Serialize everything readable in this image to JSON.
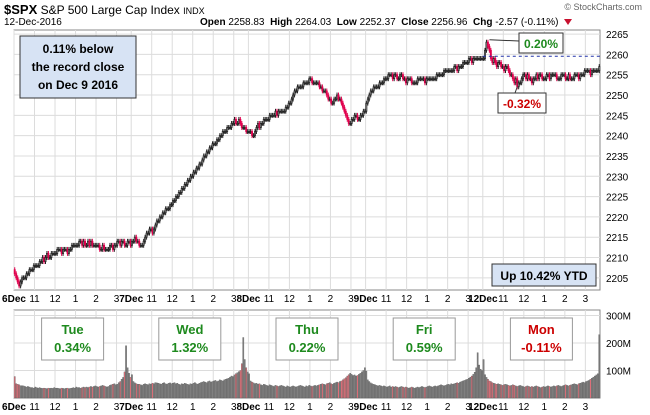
{
  "header": {
    "ticker": "$SPX",
    "name": "S&P 500 Large Cap Index",
    "exchange": "INDX",
    "date": "12-Dec-2016",
    "open_label": "Open",
    "open": "2258.83",
    "high_label": "High",
    "high": "2264.03",
    "low_label": "Low",
    "low": "2252.37",
    "close_label": "Close",
    "close": "2256.96",
    "chg_label": "Chg",
    "chg": "-2.57 (-0.11%)",
    "source": "© StockCharts.com"
  },
  "annotations": {
    "record": "0.11% below\nthe record close\non Dec 9 2016",
    "ytd": "Up 10.42% YTD",
    "up_box": "0.20%",
    "down_box": "-0.32%"
  },
  "colors": {
    "up": "#222222",
    "down": "#e0004d",
    "up_volume": "#808080",
    "down_volume": "#e0707a",
    "gain_text": "#1e8a1e",
    "loss_text": "#cc0000",
    "grid": "#dcdcdc",
    "box_fill": "#d7e3f4"
  },
  "chart_data": {
    "type": "candlestick",
    "price_axis": {
      "ylim": [
        2202,
        2266
      ],
      "ticks": [
        2205,
        2210,
        2215,
        2220,
        2225,
        2230,
        2235,
        2240,
        2245,
        2250,
        2255,
        2260,
        2265
      ]
    },
    "volume_axis": {
      "ylim": [
        0,
        320
      ],
      "ticks": [
        100,
        200,
        300
      ],
      "tick_labels": [
        "100M",
        "200M",
        "300M"
      ]
    },
    "reference_line": 2259.53,
    "x_labels": [
      "6Dec",
      "11",
      "12",
      "1",
      "2",
      "3",
      "7Dec",
      "11",
      "12",
      "1",
      "2",
      "3",
      "8Dec",
      "11",
      "12",
      "1",
      "2",
      "3",
      "9Dec",
      "11",
      "12",
      "1",
      "2",
      "3",
      "12Dec",
      "11",
      "12",
      "1",
      "2",
      "3"
    ],
    "days": [
      {
        "name": "Tue",
        "pct": "0.34%",
        "sign": "up",
        "close": [
          2206,
          2205,
          2204,
          2203,
          2204,
          2205,
          2205,
          2205,
          2206,
          2206,
          2207,
          2207,
          2207,
          2208,
          2208,
          2208,
          2208,
          2209,
          2209,
          2210,
          2209,
          2210,
          2211,
          2210,
          2210,
          2211,
          2211,
          2211,
          2211,
          2212,
          2212,
          2212,
          2211,
          2212,
          2212,
          2212,
          2211,
          2212,
          2212,
          2213,
          2213,
          2213,
          2213,
          2213,
          2214,
          2214,
          2213,
          2214,
          2213,
          2213,
          2214,
          2213,
          2214,
          2213,
          2213,
          2213,
          2213,
          2213,
          2212,
          2212,
          2213,
          2212,
          2212,
          2212,
          2212,
          2213,
          2213,
          2212,
          2213,
          2213,
          2214,
          2214,
          2213,
          2214,
          2214,
          2213,
          2213,
          2214,
          2214,
          2213
        ],
        "volume": [
          78,
          52,
          50,
          48,
          45,
          45,
          44,
          42,
          40,
          42,
          40,
          38,
          38,
          36,
          40,
          38,
          36,
          38,
          36,
          35,
          36,
          35,
          34,
          36,
          35,
          36,
          35,
          38,
          36,
          36,
          35,
          34,
          36,
          35,
          34,
          35,
          36,
          34,
          35,
          36,
          38,
          36,
          40,
          38,
          38,
          36,
          38,
          40,
          38,
          40,
          38,
          40,
          42,
          40,
          42,
          44,
          42,
          40,
          42,
          44,
          46,
          44,
          42,
          40,
          42,
          46,
          48,
          50,
          52,
          48,
          50,
          56,
          60,
          68,
          75,
          95,
          190,
          110,
          90,
          75
        ]
      },
      {
        "name": "Wed",
        "pct": "1.32%",
        "sign": "up",
        "close": [
          2214,
          2214,
          2215,
          2214,
          2214,
          2213,
          2213,
          2213,
          2214,
          2215,
          2216,
          2216,
          2217,
          2217,
          2216,
          2217,
          2218,
          2219,
          2219,
          2220,
          2220,
          2221,
          2221,
          2222,
          2222,
          2222,
          2223,
          2223,
          2224,
          2224,
          2225,
          2225,
          2226,
          2226,
          2227,
          2227,
          2228,
          2228,
          2229,
          2229,
          2230,
          2230,
          2231,
          2231,
          2232,
          2232,
          2233,
          2233,
          2234,
          2235,
          2235,
          2236,
          2236,
          2237,
          2237,
          2238,
          2238,
          2238,
          2239,
          2239,
          2240,
          2240,
          2241,
          2241,
          2241,
          2242,
          2242,
          2242,
          2243,
          2243,
          2244,
          2243,
          2243,
          2244,
          2243,
          2242,
          2242,
          2242,
          2241,
          2241
        ],
        "volume": [
          85,
          60,
          55,
          52,
          50,
          50,
          48,
          46,
          50,
          52,
          50,
          48,
          52,
          50,
          54,
          52,
          56,
          55,
          54,
          52,
          50,
          54,
          56,
          52,
          50,
          54,
          55,
          52,
          54,
          56,
          52,
          54,
          50,
          48,
          52,
          50,
          54,
          52,
          50,
          48,
          52,
          50,
          54,
          56,
          52,
          50,
          54,
          56,
          58,
          60,
          58,
          56,
          60,
          62,
          58,
          60,
          62,
          64,
          60,
          62,
          66,
          64,
          62,
          66,
          68,
          70,
          72,
          76,
          80,
          78,
          84,
          88,
          92,
          96,
          100,
          125,
          220,
          140,
          110,
          95
        ]
      },
      {
        "name": "Thu",
        "pct": "0.22%",
        "sign": "up",
        "close": [
          2241,
          2241,
          2240,
          2240,
          2241,
          2242,
          2243,
          2242,
          2243,
          2243,
          2244,
          2244,
          2244,
          2244,
          2245,
          2245,
          2245,
          2245,
          2246,
          2245,
          2246,
          2246,
          2246,
          2246,
          2246,
          2247,
          2247,
          2248,
          2248,
          2249,
          2250,
          2251,
          2251,
          2252,
          2252,
          2252,
          2252,
          2253,
          2253,
          2253,
          2253,
          2254,
          2254,
          2253,
          2253,
          2253,
          2253,
          2253,
          2252,
          2252,
          2251,
          2251,
          2251,
          2250,
          2249,
          2249,
          2248,
          2248,
          2249,
          2249,
          2250,
          2249,
          2249,
          2248,
          2247,
          2246,
          2245,
          2244,
          2243,
          2243,
          2244,
          2244,
          2245,
          2245,
          2244,
          2244,
          2245,
          2245,
          2246,
          2246
        ],
        "volume": [
          88,
          62,
          58,
          55,
          52,
          54,
          50,
          52,
          48,
          46,
          50,
          48,
          46,
          44,
          48,
          46,
          44,
          42,
          46,
          44,
          42,
          44,
          46,
          44,
          42,
          40,
          44,
          42,
          40,
          42,
          44,
          42,
          40,
          42,
          44,
          46,
          44,
          42,
          40,
          44,
          42,
          46,
          44,
          42,
          44,
          46,
          44,
          46,
          48,
          50,
          52,
          50,
          48,
          52,
          54,
          56,
          52,
          50,
          54,
          56,
          58,
          56,
          60,
          62,
          66,
          70,
          74,
          80,
          85,
          90,
          86,
          82,
          84,
          80,
          82,
          86,
          90,
          95,
          100,
          110
        ]
      },
      {
        "name": "Fri",
        "pct": "0.59%",
        "sign": "up",
        "close": [
          2248,
          2249,
          2250,
          2251,
          2251,
          2252,
          2252,
          2252,
          2252,
          2253,
          2253,
          2253,
          2254,
          2254,
          2254,
          2255,
          2255,
          2255,
          2254,
          2255,
          2255,
          2254,
          2254,
          2255,
          2255,
          2254,
          2254,
          2253,
          2254,
          2254,
          2254,
          2253,
          2253,
          2253,
          2253,
          2254,
          2254,
          2254,
          2254,
          2254,
          2253,
          2254,
          2254,
          2254,
          2254,
          2254,
          2254,
          2254,
          2255,
          2255,
          2255,
          2255,
          2255,
          2256,
          2256,
          2256,
          2256,
          2256,
          2256,
          2256,
          2257,
          2257,
          2256,
          2257,
          2257,
          2257,
          2258,
          2258,
          2258,
          2258,
          2259,
          2259,
          2258,
          2259,
          2259,
          2259,
          2259,
          2259,
          2259,
          2259
        ],
        "volume": [
          98,
          66,
          60,
          55,
          52,
          50,
          48,
          46,
          44,
          46,
          44,
          42,
          44,
          42,
          40,
          42,
          44,
          40,
          42,
          40,
          42,
          40,
          38,
          40,
          42,
          40,
          38,
          40,
          38,
          36,
          38,
          40,
          38,
          36,
          38,
          40,
          38,
          40,
          42,
          40,
          38,
          40,
          42,
          44,
          42,
          40,
          42,
          44,
          42,
          44,
          46,
          48,
          46,
          44,
          46,
          48,
          50,
          48,
          52,
          50,
          52,
          54,
          56,
          54,
          58,
          60,
          62,
          64,
          66,
          68,
          72,
          76,
          80,
          86,
          94,
          110,
          165,
          120,
          105,
          100
        ]
      },
      {
        "name": "Mon",
        "pct": "-0.11%",
        "sign": "down",
        "close": [
          2259,
          2261,
          2263,
          2262,
          2261,
          2259,
          2258,
          2259,
          2258,
          2257,
          2258,
          2258,
          2257,
          2257,
          2256,
          2257,
          2257,
          2256,
          2255,
          2255,
          2254,
          2253,
          2254,
          2252,
          2253,
          2253,
          2254,
          2255,
          2255,
          2254,
          2255,
          2254,
          2254,
          2253,
          2254,
          2254,
          2255,
          2254,
          2255,
          2255,
          2254,
          2254,
          2254,
          2255,
          2255,
          2254,
          2255,
          2255,
          2255,
          2255,
          2254,
          2254,
          2254,
          2255,
          2255,
          2255,
          2254,
          2254,
          2255,
          2254,
          2254,
          2254,
          2255,
          2255,
          2255,
          2254,
          2255,
          2255,
          2255,
          2256,
          2256,
          2256,
          2256,
          2255,
          2256,
          2256,
          2256,
          2256,
          2256,
          2257
        ],
        "volume": [
          140,
          85,
          75,
          68,
          62,
          60,
          56,
          54,
          52,
          50,
          52,
          50,
          48,
          46,
          48,
          50,
          48,
          46,
          44,
          46,
          48,
          46,
          44,
          42,
          44,
          46,
          44,
          42,
          40,
          42,
          44,
          42,
          40,
          42,
          40,
          42,
          44,
          42,
          40,
          38,
          40,
          42,
          40,
          42,
          44,
          42,
          40,
          42,
          44,
          42,
          44,
          46,
          44,
          42,
          44,
          46,
          48,
          46,
          44,
          46,
          48,
          50,
          52,
          50,
          48,
          52,
          54,
          56,
          58,
          56,
          60,
          62,
          64,
          68,
          72,
          76,
          80,
          84,
          88,
          230
        ]
      }
    ]
  }
}
